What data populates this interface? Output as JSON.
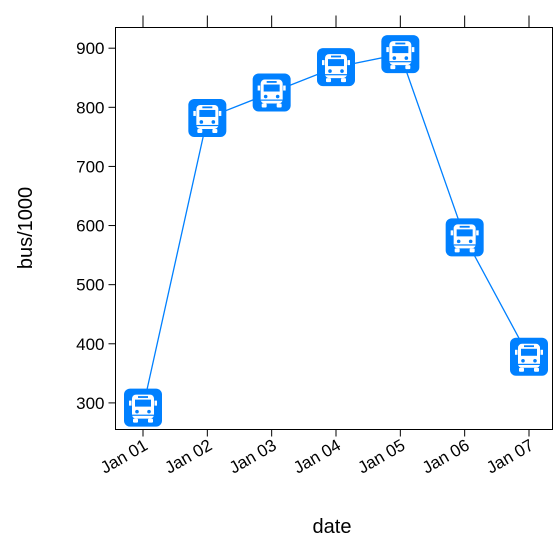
{
  "chart_data": {
    "type": "line",
    "xlabel": "date",
    "ylabel": "bus/1000",
    "x": [
      "Jan 01",
      "Jan 02",
      "Jan 03",
      "Jan 04",
      "Jan 05",
      "Jan 06",
      "Jan 07"
    ],
    "series": [
      {
        "values": [
          292,
          782,
          825,
          868,
          890,
          580,
          378
        ]
      }
    ],
    "ylim": [
      255,
      935
    ],
    "yticks": [
      300,
      400,
      500,
      600,
      700,
      800,
      900
    ],
    "marker": "bus-icon",
    "line_color": "#0080ff",
    "marker_color": "#0080ff",
    "grid": false
  }
}
